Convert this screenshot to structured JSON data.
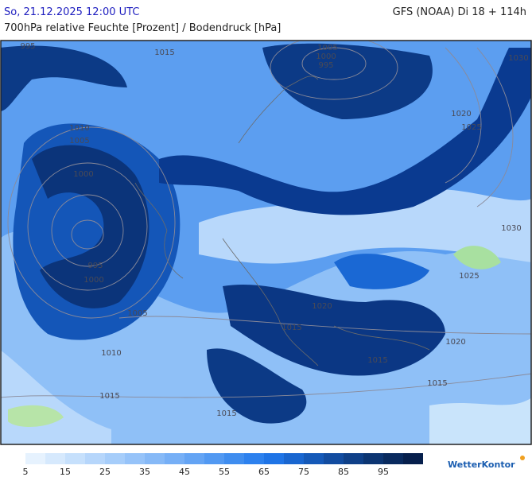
{
  "header": {
    "datetime": "So, 21.12.2025 12:00 UTC",
    "model": "GFS (NOAA) Di 18 + 114h",
    "subtitle": "700hPa relative Feuchte [Prozent] / Bodendruck [hPa]"
  },
  "map": {
    "isobar_labels": [
      "995",
      "1015",
      "1005",
      "1000",
      "995",
      "1030",
      "1020",
      "1025",
      "1010",
      "1005",
      "1000",
      "1030",
      "995",
      "1000",
      "1025",
      "1020",
      "1005",
      "1015",
      "1020",
      "1010",
      "1015",
      "1015",
      "1015",
      "1015"
    ]
  },
  "legend": {
    "colors": [
      "#e6f2fe",
      "#d6e9fd",
      "#c6e0fc",
      "#b6d6fb",
      "#a6cdfa",
      "#96c3f9",
      "#86b9f7",
      "#76aff6",
      "#64a4f4",
      "#5299f2",
      "#3f8def",
      "#2d81ee",
      "#1f74e6",
      "#1966d0",
      "#1559b8",
      "#124ca0",
      "#0f4088",
      "#0c3572",
      "#092a5e",
      "#061f4c"
    ],
    "labels": [
      5,
      15,
      25,
      35,
      45,
      55,
      65,
      75,
      85,
      95
    ]
  },
  "logo": "WetterKontor"
}
